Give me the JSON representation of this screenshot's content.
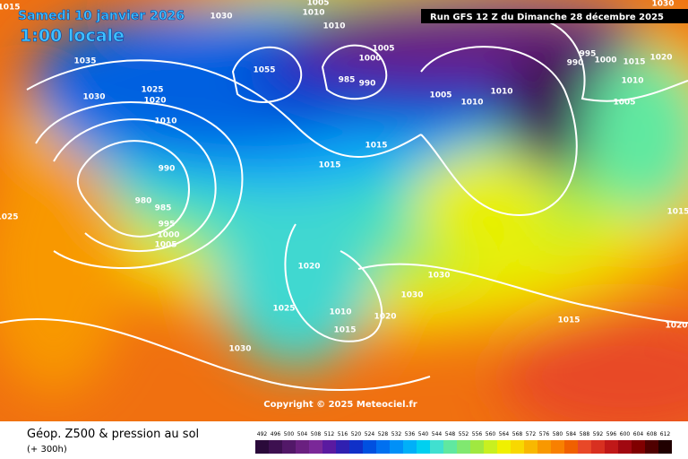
{
  "header": {
    "date": "Samedi 10 janvier 2026",
    "time": "1:00 locale",
    "run": "Run GFS 12 Z du Dimanche 28 décembre 2025"
  },
  "isobar_labels": [
    1015,
    1030,
    1010,
    1005,
    1035,
    1030,
    1025,
    1020,
    1010,
    990,
    980,
    985,
    995,
    1000,
    1005,
    1025,
    1055,
    1010,
    1005,
    1000,
    990,
    985,
    1005,
    1010,
    1010,
    995,
    990,
    1000,
    1010,
    1005,
    1015,
    1015,
    1020,
    1030,
    1030,
    1010,
    1015,
    1020,
    1025,
    1030,
    1015,
    1020,
    1015,
    1020,
    1015,
    1030
  ],
  "copyright": "Copyright © 2025 Meteociel.fr",
  "footer": {
    "title": "Géop. Z500 & pression au sol",
    "lead": "(+ 300h)"
  },
  "legend": {
    "values": [
      492,
      496,
      500,
      504,
      508,
      512,
      516,
      520,
      524,
      528,
      532,
      536,
      540,
      544,
      548,
      552,
      556,
      560,
      564,
      568,
      572,
      576,
      580,
      584,
      588,
      592,
      596,
      600,
      604,
      608,
      612
    ],
    "colors": [
      "#2a0a3a",
      "#3d1050",
      "#521868",
      "#6a2080",
      "#7a2898",
      "#5a1aa0",
      "#3020b0",
      "#1030c8",
      "#0050e0",
      "#0070f0",
      "#0090f8",
      "#00b0f8",
      "#00d0f0",
      "#40e0d0",
      "#60e8a0",
      "#80e870",
      "#a0e840",
      "#c8f020",
      "#f0f000",
      "#f8d800",
      "#f8b800",
      "#f89800",
      "#f88000",
      "#f06000",
      "#e84828",
      "#d83020",
      "#c01818",
      "#a00810",
      "#800000",
      "#500000",
      "#200000"
    ]
  }
}
